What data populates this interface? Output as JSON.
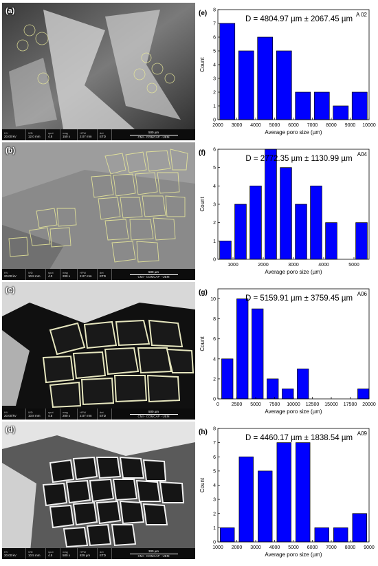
{
  "panels": [
    {
      "label": "(a)",
      "sem": {
        "hv": "20.00 kV",
        "wd": "12.0 mm",
        "spot": "4.5",
        "mag": "150 x",
        "hfw": "2.07 mm",
        "det": "ETD",
        "scalebar": "500 µm",
        "institution": "CMI - COMCAP - UEM"
      }
    },
    {
      "label": "(b)",
      "sem": {
        "hv": "20.00 kV",
        "wd": "10.8 mm",
        "spot": "4.0",
        "mag": "200 x",
        "hfw": "2.07 mm",
        "det": "ETD",
        "scalebar": "500 µm",
        "institution": "CMI - COMCAP - UEM"
      }
    },
    {
      "label": "(c)",
      "sem": {
        "hv": "20.00 kV",
        "wd": "10.8 mm",
        "spot": "4.5",
        "mag": "200 x",
        "hfw": "2.07 mm",
        "det": "ETD",
        "scalebar": "500 µm",
        "institution": "CMI - COMCAP - UEM"
      }
    },
    {
      "label": "(d)",
      "sem": {
        "hv": "20.00 kV",
        "wd": "10.5 mm",
        "spot": "4.5",
        "mag": "500 x",
        "hfw": "829 µm",
        "det": "ETD",
        "scalebar": "300 µm",
        "institution": "CMI - COMCAP - UEM"
      }
    }
  ],
  "sem_header": {
    "hv": "HV",
    "wd": "WD",
    "spot": "spot",
    "mag": "mag",
    "hfw": "HFW",
    "det": "det"
  },
  "colors": {
    "bar": "#0000ff",
    "bar_edge": "#000000"
  },
  "chart_data": [
    {
      "type": "bar",
      "panel_label": "(e)",
      "sample": "A 02",
      "title": "D = 4804.97 µm ± 2067.45 µm",
      "xlabel": "Average poro size (µm)",
      "ylabel": "Count",
      "x": [
        2500,
        3500,
        4500,
        5500,
        6500,
        7500,
        8500,
        9500
      ],
      "values": [
        7,
        5,
        6,
        5,
        2,
        2,
        1,
        2
      ],
      "bin_width": 800,
      "xlim": [
        2000,
        10000
      ],
      "ylim": [
        0,
        8
      ],
      "xticks": [
        2000,
        3000,
        4000,
        5000,
        6000,
        7000,
        8000,
        9000,
        10000
      ],
      "yticks": [
        0,
        1,
        2,
        3,
        4,
        5,
        6,
        7,
        8
      ],
      "grid": false
    },
    {
      "type": "bar",
      "panel_label": "(f)",
      "sample": "A04",
      "title": "D = 2772.35 µm ± 1130.99 µm",
      "xlabel": "Average poro size (µm)",
      "ylabel": "Count",
      "x": [
        750,
        1250,
        1750,
        2250,
        2750,
        3250,
        3750,
        4250,
        4750,
        5250
      ],
      "values": [
        1,
        3,
        4,
        6,
        5,
        3,
        4,
        2,
        0,
        2
      ],
      "bin_width": 380,
      "xlim": [
        500,
        5500
      ],
      "ylim": [
        0,
        6
      ],
      "xticks": [
        1000,
        2000,
        3000,
        4000,
        5000
      ],
      "yticks": [
        0,
        1,
        2,
        3,
        4,
        5,
        6
      ],
      "grid": false
    },
    {
      "type": "bar",
      "panel_label": "(g)",
      "sample": "A06",
      "title": "D = 5159.91 µm ± 3759.45 µm",
      "xlabel": "Average poro size (µm)",
      "ylabel": "Count",
      "x": [
        1250,
        3250,
        5250,
        7250,
        9250,
        11250,
        19250
      ],
      "values": [
        4,
        10,
        9,
        2,
        1,
        3,
        1
      ],
      "bin_width": 1500,
      "xlim": [
        0,
        20000
      ],
      "ylim": [
        0,
        11
      ],
      "xticks": [
        0,
        2500,
        5000,
        7500,
        10000,
        12500,
        15000,
        17500,
        20000
      ],
      "yticks": [
        0,
        2,
        4,
        6,
        8,
        10
      ],
      "grid": false
    },
    {
      "type": "bar",
      "panel_label": "(h)",
      "sample": "A09",
      "title": "D = 4460.17 µm ± 1838.54 µm",
      "xlabel": "Average poro size (µm)",
      "ylabel": "Count",
      "x": [
        1500,
        2500,
        3500,
        4500,
        5500,
        6500,
        7500,
        8500
      ],
      "values": [
        1,
        6,
        5,
        7,
        7,
        1,
        1,
        2
      ],
      "bin_width": 750,
      "xlim": [
        1000,
        9000
      ],
      "ylim": [
        0,
        8
      ],
      "xticks": [
        1000,
        2000,
        3000,
        4000,
        5000,
        6000,
        7000,
        8000,
        9000
      ],
      "yticks": [
        0,
        1,
        2,
        3,
        4,
        5,
        6,
        7,
        8
      ],
      "grid": false
    }
  ]
}
